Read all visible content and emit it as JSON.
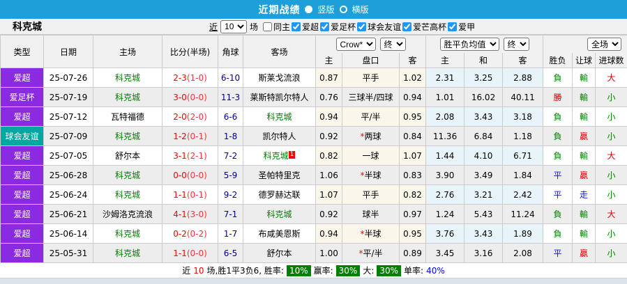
{
  "colors": {
    "topbar_blue": "#1E9FD9",
    "league_purple": "#8A2BE2",
    "friendly_teal": "#00A8A0",
    "win_red": "#DD0000",
    "lose_green": "#008000",
    "draw_blue": "#1515CD",
    "score_red": "#FF0000",
    "corner_navy": "#00008B",
    "badge_green": "#008000"
  },
  "topbar": {
    "title": "近期战绩",
    "options": [
      {
        "label": "竖版",
        "selected": true
      },
      {
        "label": "横版",
        "selected": false
      }
    ]
  },
  "filterbar": {
    "team_name": "科克城",
    "near_label": "近",
    "near_value": "10",
    "near_suffix": "场",
    "same_home": {
      "label": "同主",
      "checked": false
    },
    "leagues": [
      {
        "label": "爱超",
        "checked": true
      },
      {
        "label": "爱足杯",
        "checked": true
      },
      {
        "label": "球会友谊",
        "checked": true
      },
      {
        "label": "爱芒高杯",
        "checked": true
      },
      {
        "label": "爱甲",
        "checked": true
      }
    ]
  },
  "table": {
    "headers": {
      "type": "类型",
      "date": "日期",
      "home": "主场",
      "score": "比分(半场)",
      "corner": "角球",
      "away": "客场",
      "odds_group": {
        "bookmaker_select": "Crow*",
        "period_select": "终",
        "cols": {
          "home": "主",
          "handicap": "盘口",
          "away": "客"
        }
      },
      "mean_group": {
        "mean_select": "胜平负均值",
        "period_select": "终",
        "cols": {
          "home": "主",
          "draw": "和",
          "away": "客"
        }
      },
      "result_group": {
        "scope_select": "全场",
        "cols": {
          "wdl": "胜负",
          "handicap": "让球",
          "goals": "进球数"
        }
      }
    },
    "rows": [
      {
        "type": "爱超",
        "type_bg": "#8A2BE2",
        "date": "25-07-26",
        "home": "科克城",
        "home_focus": true,
        "score": "2-3",
        "half": "(1-0)",
        "corner": "6-10",
        "away": "斯莱戈流浪",
        "away_focus": false,
        "away_badge": "",
        "odds_home": "0.87",
        "handicap": "平手",
        "star": false,
        "odds_away": "1.02",
        "mean_home": "2.31",
        "mean_draw": "3.25",
        "mean_away": "2.88",
        "wdl": {
          "t": "負",
          "c": "g"
        },
        "let": {
          "t": "輸",
          "c": "g"
        },
        "size": {
          "t": "大",
          "c": "r"
        }
      },
      {
        "type": "爱足杯",
        "type_bg": "#8A2BE2",
        "date": "25-07-19",
        "home": "科克城",
        "home_focus": true,
        "score": "3-0",
        "half": "(0-0)",
        "corner": "11-3",
        "away": "莱斯特凯尔特人",
        "away_focus": false,
        "away_badge": "",
        "odds_home": "0.76",
        "handicap": "三球半/四球",
        "star": false,
        "odds_away": "0.94",
        "mean_home": "1.01",
        "mean_draw": "16.02",
        "mean_away": "40.11",
        "wdl": {
          "t": "勝",
          "c": "r"
        },
        "let": {
          "t": "輸",
          "c": "g"
        },
        "size": {
          "t": "小",
          "c": "g"
        }
      },
      {
        "type": "爱超",
        "type_bg": "#8A2BE2",
        "date": "25-07-12",
        "home": "瓦特福德",
        "home_focus": false,
        "score": "2-0",
        "half": "(2-0)",
        "corner": "6-6",
        "away": "科克城",
        "away_focus": true,
        "away_badge": "",
        "odds_home": "0.94",
        "handicap": "平/半",
        "star": false,
        "odds_away": "0.95",
        "mean_home": "2.08",
        "mean_draw": "3.43",
        "mean_away": "3.18",
        "wdl": {
          "t": "負",
          "c": "g"
        },
        "let": {
          "t": "輸",
          "c": "g"
        },
        "size": {
          "t": "小",
          "c": "g"
        }
      },
      {
        "type": "球会友谊",
        "type_bg": "#00A8A0",
        "date": "25-07-09",
        "home": "科克城",
        "home_focus": true,
        "score": "1-2",
        "half": "(0-1)",
        "corner": "1-8",
        "away": "凯尔特人",
        "away_focus": false,
        "away_badge": "",
        "odds_home": "0.92",
        "handicap": "两球",
        "star": true,
        "odds_away": "0.84",
        "mean_home": "11.36",
        "mean_draw": "6.84",
        "mean_away": "1.18",
        "wdl": {
          "t": "負",
          "c": "g"
        },
        "let": {
          "t": "贏",
          "c": "r"
        },
        "size": {
          "t": "小",
          "c": "g"
        }
      },
      {
        "type": "爱超",
        "type_bg": "#8A2BE2",
        "date": "25-07-05",
        "home": "舒尔本",
        "home_focus": false,
        "score": "3-1",
        "half": "(2-1)",
        "corner": "7-2",
        "away": "科克城",
        "away_focus": true,
        "away_badge": "1",
        "odds_home": "0.82",
        "handicap": "一球",
        "star": false,
        "odds_away": "1.07",
        "mean_home": "1.44",
        "mean_draw": "4.10",
        "mean_away": "6.71",
        "wdl": {
          "t": "負",
          "c": "g"
        },
        "let": {
          "t": "輸",
          "c": "g"
        },
        "size": {
          "t": "大",
          "c": "r"
        }
      },
      {
        "type": "爱超",
        "type_bg": "#8A2BE2",
        "date": "25-06-28",
        "home": "科克城",
        "home_focus": true,
        "score": "0-0",
        "half": "(0-0)",
        "corner": "5-9",
        "away": "圣帕特里克",
        "away_focus": false,
        "away_badge": "",
        "odds_home": "1.06",
        "handicap": "半球",
        "star": true,
        "odds_away": "0.83",
        "mean_home": "3.90",
        "mean_draw": "3.49",
        "mean_away": "1.84",
        "wdl": {
          "t": "平",
          "c": "b"
        },
        "let": {
          "t": "贏",
          "c": "r"
        },
        "size": {
          "t": "小",
          "c": "g"
        }
      },
      {
        "type": "爱超",
        "type_bg": "#8A2BE2",
        "date": "25-06-24",
        "home": "科克城",
        "home_focus": true,
        "score": "1-1",
        "half": "(0-1)",
        "corner": "9-2",
        "away": "德罗赫达联",
        "away_focus": false,
        "away_badge": "",
        "odds_home": "1.07",
        "handicap": "平手",
        "star": false,
        "odds_away": "0.82",
        "mean_home": "2.76",
        "mean_draw": "3.21",
        "mean_away": "2.42",
        "wdl": {
          "t": "平",
          "c": "b"
        },
        "let": {
          "t": "走",
          "c": "b"
        },
        "size": {
          "t": "小",
          "c": "g"
        }
      },
      {
        "type": "爱超",
        "type_bg": "#8A2BE2",
        "date": "25-06-21",
        "home": "沙姆洛克流浪",
        "home_focus": false,
        "score": "4-1",
        "half": "(3-0)",
        "corner": "7-1",
        "away": "科克城",
        "away_focus": true,
        "away_badge": "",
        "odds_home": "0.92",
        "handicap": "球半",
        "star": false,
        "odds_away": "0.97",
        "mean_home": "1.24",
        "mean_draw": "5.43",
        "mean_away": "11.24",
        "wdl": {
          "t": "負",
          "c": "g"
        },
        "let": {
          "t": "輸",
          "c": "g"
        },
        "size": {
          "t": "大",
          "c": "r"
        }
      },
      {
        "type": "爱超",
        "type_bg": "#8A2BE2",
        "date": "25-06-14",
        "home": "科克城",
        "home_focus": true,
        "score": "0-2",
        "half": "(0-2)",
        "corner": "1-7",
        "away": "布咸美恩斯",
        "away_focus": false,
        "away_badge": "",
        "odds_home": "0.94",
        "handicap": "半球",
        "star": true,
        "odds_away": "0.95",
        "mean_home": "3.76",
        "mean_draw": "3.43",
        "mean_away": "1.89",
        "wdl": {
          "t": "負",
          "c": "g"
        },
        "let": {
          "t": "輸",
          "c": "g"
        },
        "size": {
          "t": "小",
          "c": "g"
        }
      },
      {
        "type": "爱超",
        "type_bg": "#8A2BE2",
        "date": "25-05-31",
        "home": "科克城",
        "home_focus": true,
        "score": "1-1",
        "half": "(0-0)",
        "corner": "6-5",
        "away": "舒尔本",
        "away_focus": false,
        "away_badge": "",
        "odds_home": "1.00",
        "handicap": "平/半",
        "star": true,
        "odds_away": "0.89",
        "mean_home": "3.45",
        "mean_draw": "3.16",
        "mean_away": "2.08",
        "wdl": {
          "t": "平",
          "c": "b"
        },
        "let": {
          "t": "贏",
          "c": "r"
        },
        "size": {
          "t": "小",
          "c": "g"
        }
      }
    ]
  },
  "footer": {
    "parts": [
      {
        "text": "近",
        "style": "plain"
      },
      {
        "text": "10",
        "style": "red"
      },
      {
        "text": "场,胜1平3负6, 胜率:",
        "style": "plain"
      },
      {
        "text": "10%",
        "style": "badge"
      },
      {
        "text": "赢率:",
        "style": "plain"
      },
      {
        "text": "30%",
        "style": "badge"
      },
      {
        "text": "大:",
        "style": "plain"
      },
      {
        "text": "30%",
        "style": "badge"
      },
      {
        "text": "单率:",
        "style": "plain"
      },
      {
        "text": "40%",
        "style": "blue"
      }
    ]
  }
}
